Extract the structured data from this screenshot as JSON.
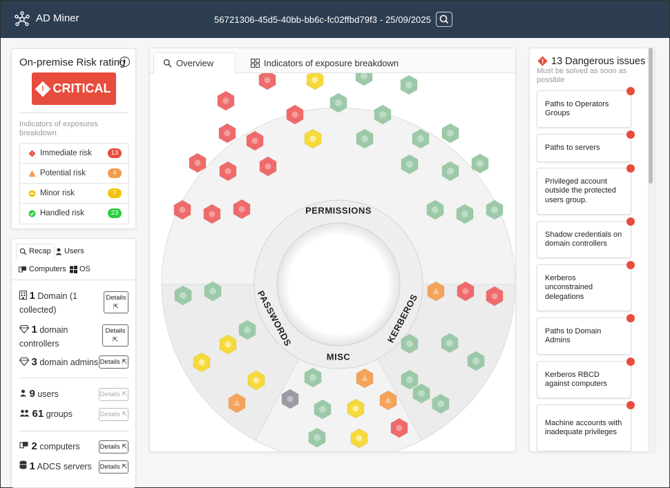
{
  "header": {
    "app_title": "AD Miner",
    "session": "56721306-45d5-40bb-bb6c-fc02ffbd79f3 - 25/09/2025"
  },
  "risk": {
    "title": "On-premise Risk rating",
    "rating": "CRITICAL",
    "breakdown_label": "Indicators of exposures breakdown",
    "rows": [
      {
        "label": "Immediate risk",
        "count": "13",
        "color": "#e74c3c"
      },
      {
        "label": "Potential risk",
        "count": "4",
        "color": "#f39c4b"
      },
      {
        "label": "Minor risk",
        "count": "7",
        "color": "#f1c40f"
      },
      {
        "label": "Handled risk",
        "count": "23",
        "color": "#2ecc40"
      }
    ]
  },
  "recap": {
    "tabs": {
      "recap": "Recap",
      "users": "Users",
      "computers": "Computers",
      "os": "OS"
    },
    "details_label": "Details",
    "domain": {
      "count": "1",
      "text": "Domain (1 collected)"
    },
    "dcs": {
      "count": "1",
      "text": "domain controllers"
    },
    "admins": {
      "count": "3",
      "text": "domain admins"
    },
    "users": {
      "count": "9",
      "text": "users"
    },
    "groups": {
      "count": "61",
      "text": "groups"
    },
    "computers": {
      "count": "2",
      "text": "computers"
    },
    "adcs": {
      "count": "1",
      "text": "ADCS servers"
    }
  },
  "main": {
    "tabs": {
      "overview": "Overview",
      "breakdown": "Indicators of exposure breakdown"
    },
    "sectors": {
      "permissions": "PERMISSIONS",
      "passwords": "PASSWORDS",
      "misc": "MISC",
      "kerberos": "KERBEROS"
    }
  },
  "issues": {
    "title": "13 Dangerous issues",
    "subtitle": "Must be solved as soon as possible",
    "items": [
      "Paths to Operators Groups",
      "Paths to servers",
      "Privileged account outside the protected users group.",
      "Shadow credentials on domain controllers",
      "Kerberos unconstrained delegations",
      "Paths to Domain Admins",
      "Kerberos RBCD against computers",
      "Machine accounts with inadequate privileges"
    ]
  },
  "colors": {
    "header_bg": "#2c3e50",
    "critical": "#e74c3c",
    "red": "#ef6b6b",
    "orange": "#f4a35a",
    "yellow": "#f6d93a",
    "green": "#9ccaa8",
    "grey": "#9b9ba3"
  }
}
